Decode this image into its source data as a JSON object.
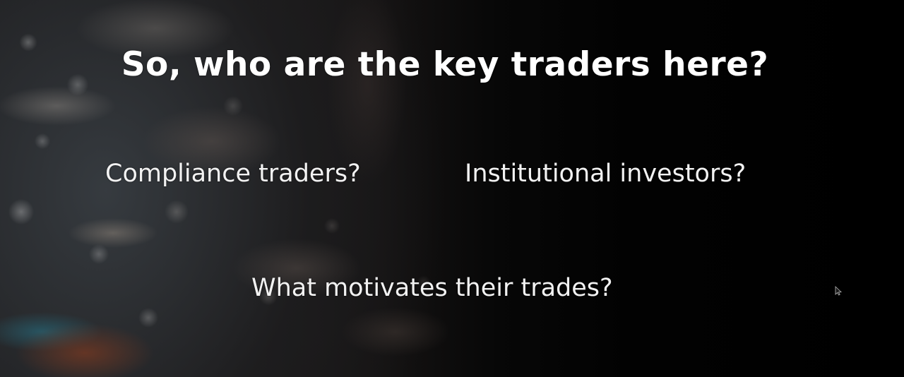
{
  "slide": {
    "title": "So, who are the key traders here?",
    "points": [
      "Compliance traders?",
      "Institutional investors?",
      "What motivates their trades?"
    ]
  },
  "icons": {
    "cursor": "mouse-pointer-icon"
  }
}
